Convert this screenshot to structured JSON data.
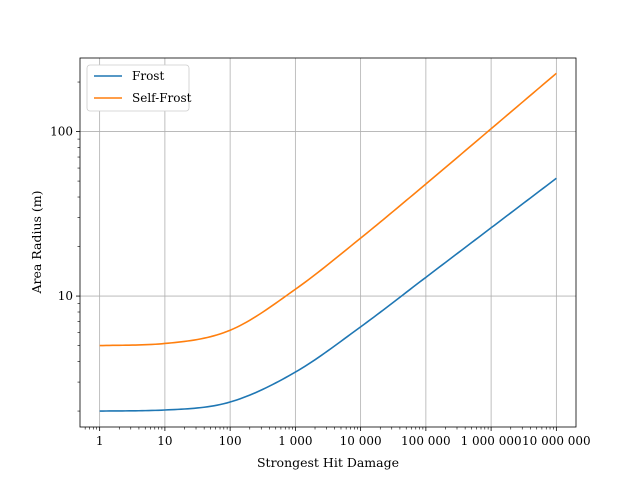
{
  "chart_data": {
    "type": "line",
    "x_scale": "log",
    "y_scale": "log",
    "xlabel": "Strongest Hit Damage",
    "ylabel": "Area Radius (m)",
    "xlim": [
      0.5,
      20000000
    ],
    "ylim": [
      1.6,
      280
    ],
    "grid": true,
    "legend_position": "top-left",
    "x_ticks": [
      {
        "value": 1,
        "label": "1"
      },
      {
        "value": 10,
        "label": "10"
      },
      {
        "value": 100,
        "label": "100"
      },
      {
        "value": 1000,
        "label": "1 000"
      },
      {
        "value": 10000,
        "label": "10 000"
      },
      {
        "value": 100000,
        "label": "100 000"
      },
      {
        "value": 1000000,
        "label": "1 000 000"
      },
      {
        "value": 10000000,
        "label": "10 000 000"
      }
    ],
    "y_ticks": [
      {
        "value": 10,
        "label": "10"
      },
      {
        "value": 100,
        "label": "100"
      }
    ],
    "x": [
      1,
      10,
      100,
      1000,
      10000,
      100000,
      1000000,
      10000000
    ],
    "series": [
      {
        "name": "Frost",
        "color": "#1f77b4",
        "values": [
          2.0,
          2.03,
          2.27,
          3.45,
          6.5,
          13.0,
          26.0,
          52.0
        ]
      },
      {
        "name": "Self-Frost",
        "color": "#ff7f0e",
        "values": [
          5.0,
          5.15,
          6.2,
          11.0,
          22.5,
          48.0,
          104.0,
          226.0
        ]
      }
    ]
  }
}
